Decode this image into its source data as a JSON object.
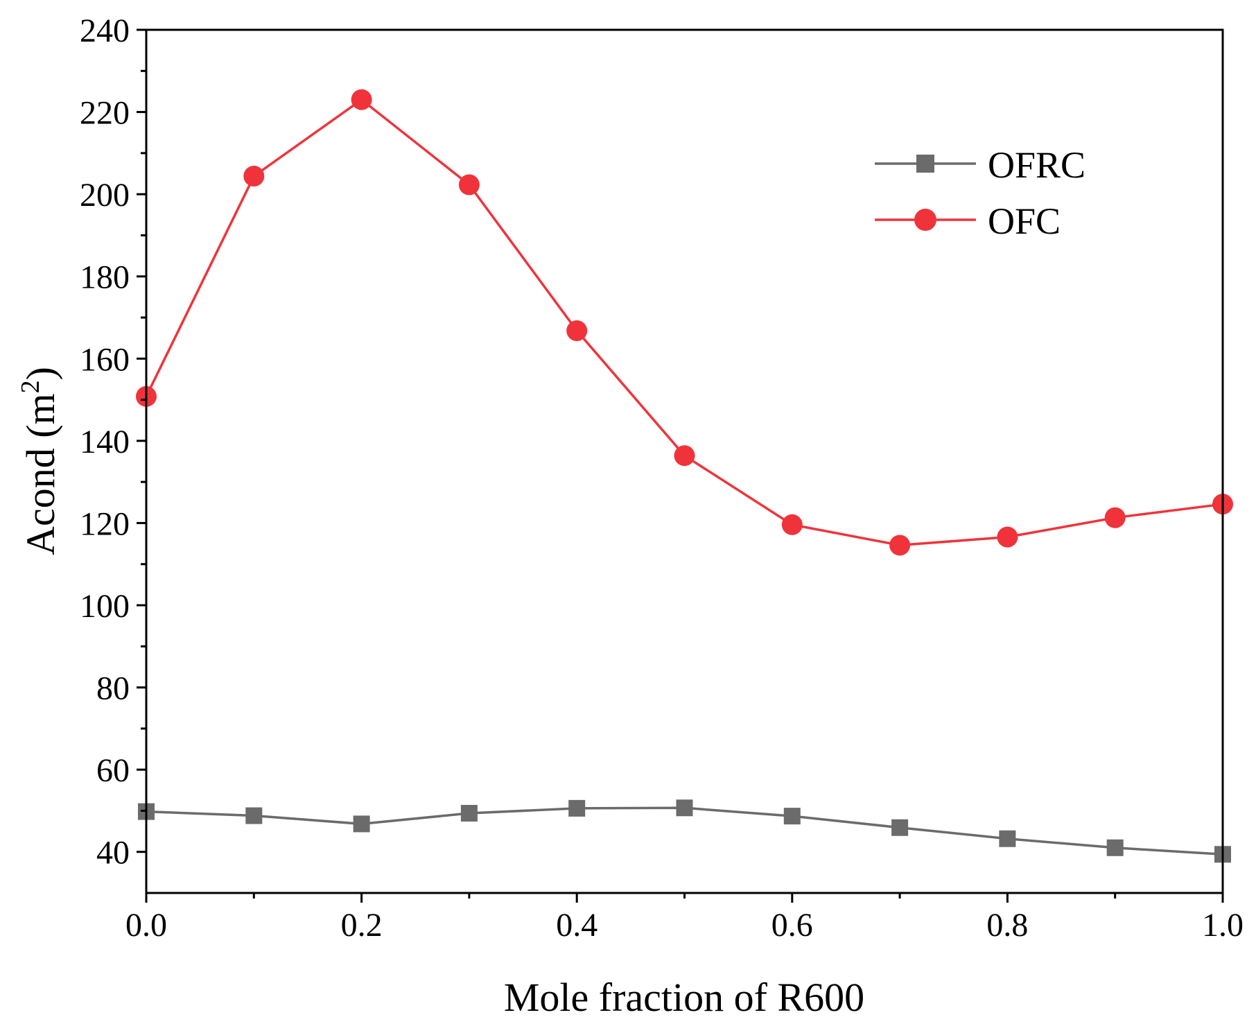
{
  "chart_data": {
    "type": "line",
    "title": "",
    "xlabel": "Mole fraction of R600",
    "ylabel": {
      "base": "Acond (m",
      "sup": "2",
      "end": ")"
    },
    "xlim": [
      0.0,
      1.0
    ],
    "ylim": [
      30,
      240
    ],
    "x_ticks": [
      "0.0",
      "0.2",
      "0.4",
      "0.6",
      "0.8",
      "1.0"
    ],
    "x_tick_values": [
      0.0,
      0.2,
      0.4,
      0.6,
      0.8,
      1.0
    ],
    "x_minor_tick_values": [
      0.1,
      0.3,
      0.5,
      0.7,
      0.9
    ],
    "y_ticks": [
      "40",
      "60",
      "80",
      "100",
      "120",
      "140",
      "160",
      "180",
      "200",
      "220",
      "240"
    ],
    "y_tick_values": [
      40,
      60,
      80,
      100,
      120,
      140,
      160,
      180,
      200,
      220,
      240
    ],
    "y_minor_tick_values": [
      50,
      70,
      90,
      110,
      130,
      150,
      170,
      190,
      210,
      230
    ],
    "grid": false,
    "legend_position": "top-right",
    "x": [
      0.0,
      0.1,
      0.2,
      0.3,
      0.4,
      0.5,
      0.6,
      0.7,
      0.8,
      0.9,
      1.0
    ],
    "series": [
      {
        "name": "OFRC",
        "marker": "square",
        "color": "#6b6b6b",
        "values": [
          49.8,
          48.8,
          46.8,
          49.4,
          50.6,
          50.7,
          48.7,
          45.9,
          43.2,
          41.0,
          39.4
        ]
      },
      {
        "name": "OFC",
        "marker": "circle",
        "color": "#f0333a",
        "values": [
          150.8,
          204.4,
          223.0,
          202.3,
          166.8,
          136.4,
          119.6,
          114.6,
          116.6,
          121.3,
          124.6
        ]
      }
    ]
  }
}
